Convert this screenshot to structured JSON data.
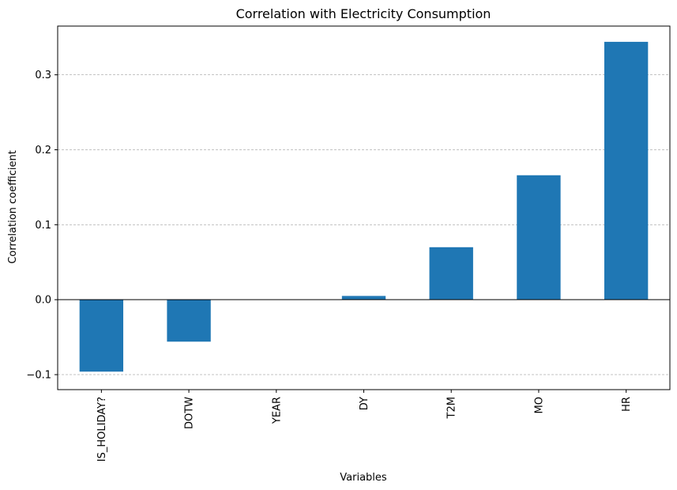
{
  "chart_data": {
    "type": "bar",
    "title": "Correlation with Electricity Consumption",
    "xlabel": "Variables",
    "ylabel": "Correlation coefficient",
    "categories": [
      "IS_HOLIDAY?",
      "DOTW",
      "YEAR",
      "DY",
      "T2M",
      "MO",
      "HR"
    ],
    "values": [
      -0.096,
      -0.056,
      0.0,
      0.005,
      0.07,
      0.166,
      0.344
    ],
    "ylim": [
      -0.12,
      0.365
    ],
    "yticks": [
      -0.1,
      0.0,
      0.1,
      0.2,
      0.3
    ],
    "ytick_labels": [
      "−0.1",
      "0.0",
      "0.1",
      "0.2",
      "0.3"
    ],
    "bar_color": "#1f77b4",
    "grid": "y-dashed",
    "zero_line": true
  }
}
